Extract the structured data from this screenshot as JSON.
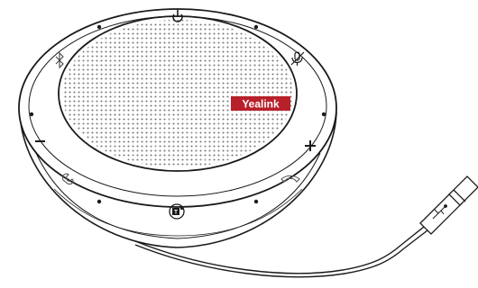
{
  "brand": {
    "label": "Yealink",
    "badge_color": "#b8202a"
  },
  "colors": {
    "outline": "#1a1a1a",
    "grille_dots": "#777777",
    "background": "#ffffff"
  },
  "controls": [
    {
      "name": "power-button",
      "icon": "power-icon"
    },
    {
      "name": "bluetooth-button",
      "icon": "bluetooth-icon"
    },
    {
      "name": "mute-button",
      "icon": "microphone-mute-icon"
    },
    {
      "name": "volume-down-button",
      "icon": "minus-icon"
    },
    {
      "name": "volume-up-button",
      "icon": "plus-icon"
    },
    {
      "name": "answer-call-button",
      "icon": "phone-answer-icon"
    },
    {
      "name": "end-call-button",
      "icon": "phone-hangup-icon"
    },
    {
      "name": "teams-button",
      "icon": "teams-icon"
    }
  ],
  "cable": {
    "connector": "usb-connector",
    "icon": "usb-icon"
  }
}
